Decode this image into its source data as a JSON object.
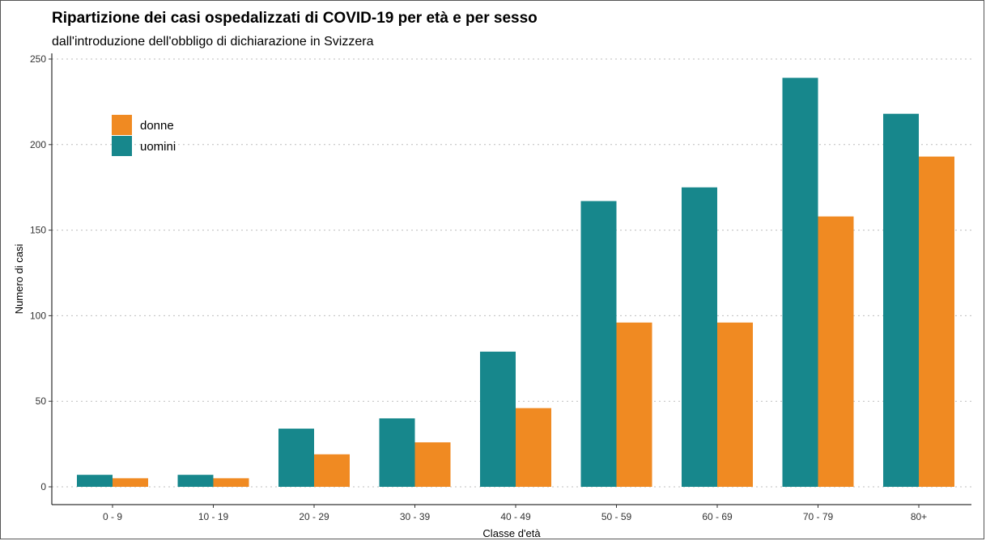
{
  "chart_data": {
    "type": "bar",
    "title": "Ripartizione dei casi ospedalizzati di COVID-19 per età e per sesso",
    "subtitle": "dall'introduzione dell'obbligo di dichiarazione in Svizzera",
    "xlabel": "Classe d'età",
    "ylabel": "Numero di casi",
    "ylim": [
      0,
      250
    ],
    "yticks": [
      0,
      50,
      100,
      150,
      200,
      250
    ],
    "grid": "horizontal dotted",
    "legend_position": "top-left",
    "categories": [
      "0 - 9",
      "10 - 19",
      "20 - 29",
      "30 - 39",
      "40 - 49",
      "50 - 59",
      "60 - 69",
      "70 - 79",
      "80+"
    ],
    "series": [
      {
        "name": "uomini",
        "color": "#17878c",
        "values": [
          7,
          7,
          34,
          40,
          79,
          167,
          175,
          239,
          218
        ]
      },
      {
        "name": "donne",
        "color": "#f08a22",
        "values": [
          5,
          5,
          19,
          26,
          46,
          96,
          96,
          158,
          193
        ]
      }
    ],
    "legend_order": [
      "donne",
      "uomini"
    ]
  }
}
